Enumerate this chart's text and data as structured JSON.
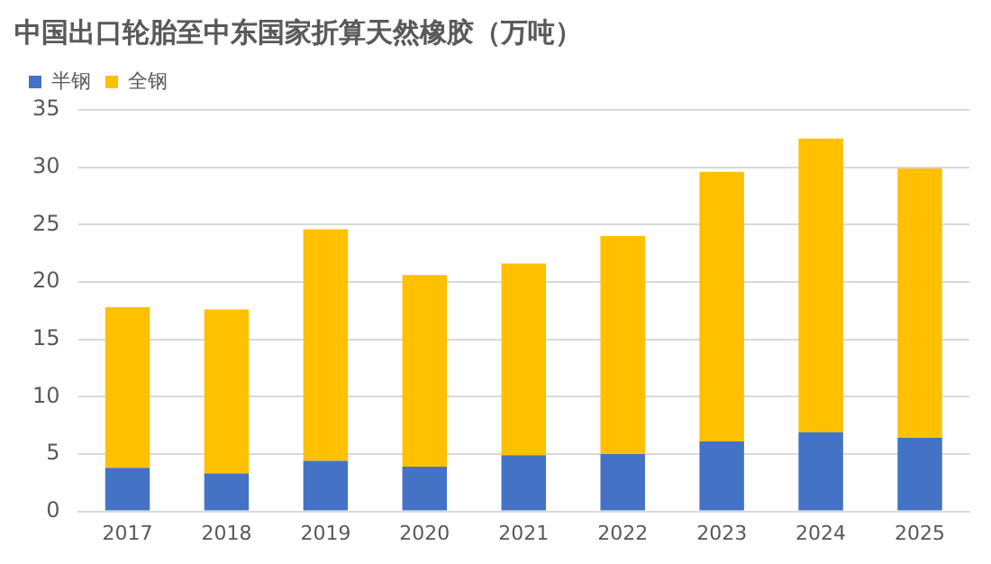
{
  "chart_data": {
    "type": "bar",
    "title": "中国出口轮胎至中东国家折算天然橡胶（万吨）",
    "categories": [
      "2017",
      "2018",
      "2019",
      "2020",
      "2021",
      "2022",
      "2023",
      "2024",
      "2025"
    ],
    "stacked": true,
    "series": [
      {
        "name": "半钢",
        "color": "#4472c4",
        "values": [
          3.8,
          3.3,
          4.4,
          3.9,
          4.9,
          5.0,
          6.1,
          6.9,
          6.4
        ]
      },
      {
        "name": "全钢",
        "color": "#ffc000",
        "values": [
          14.0,
          14.3,
          20.2,
          16.7,
          16.7,
          19.0,
          23.5,
          25.6,
          23.5
        ]
      }
    ],
    "ylim": [
      0,
      35
    ],
    "yticks": [
      0,
      5,
      10,
      15,
      20,
      25,
      30,
      35
    ],
    "grid": "y",
    "legend": "top left"
  }
}
